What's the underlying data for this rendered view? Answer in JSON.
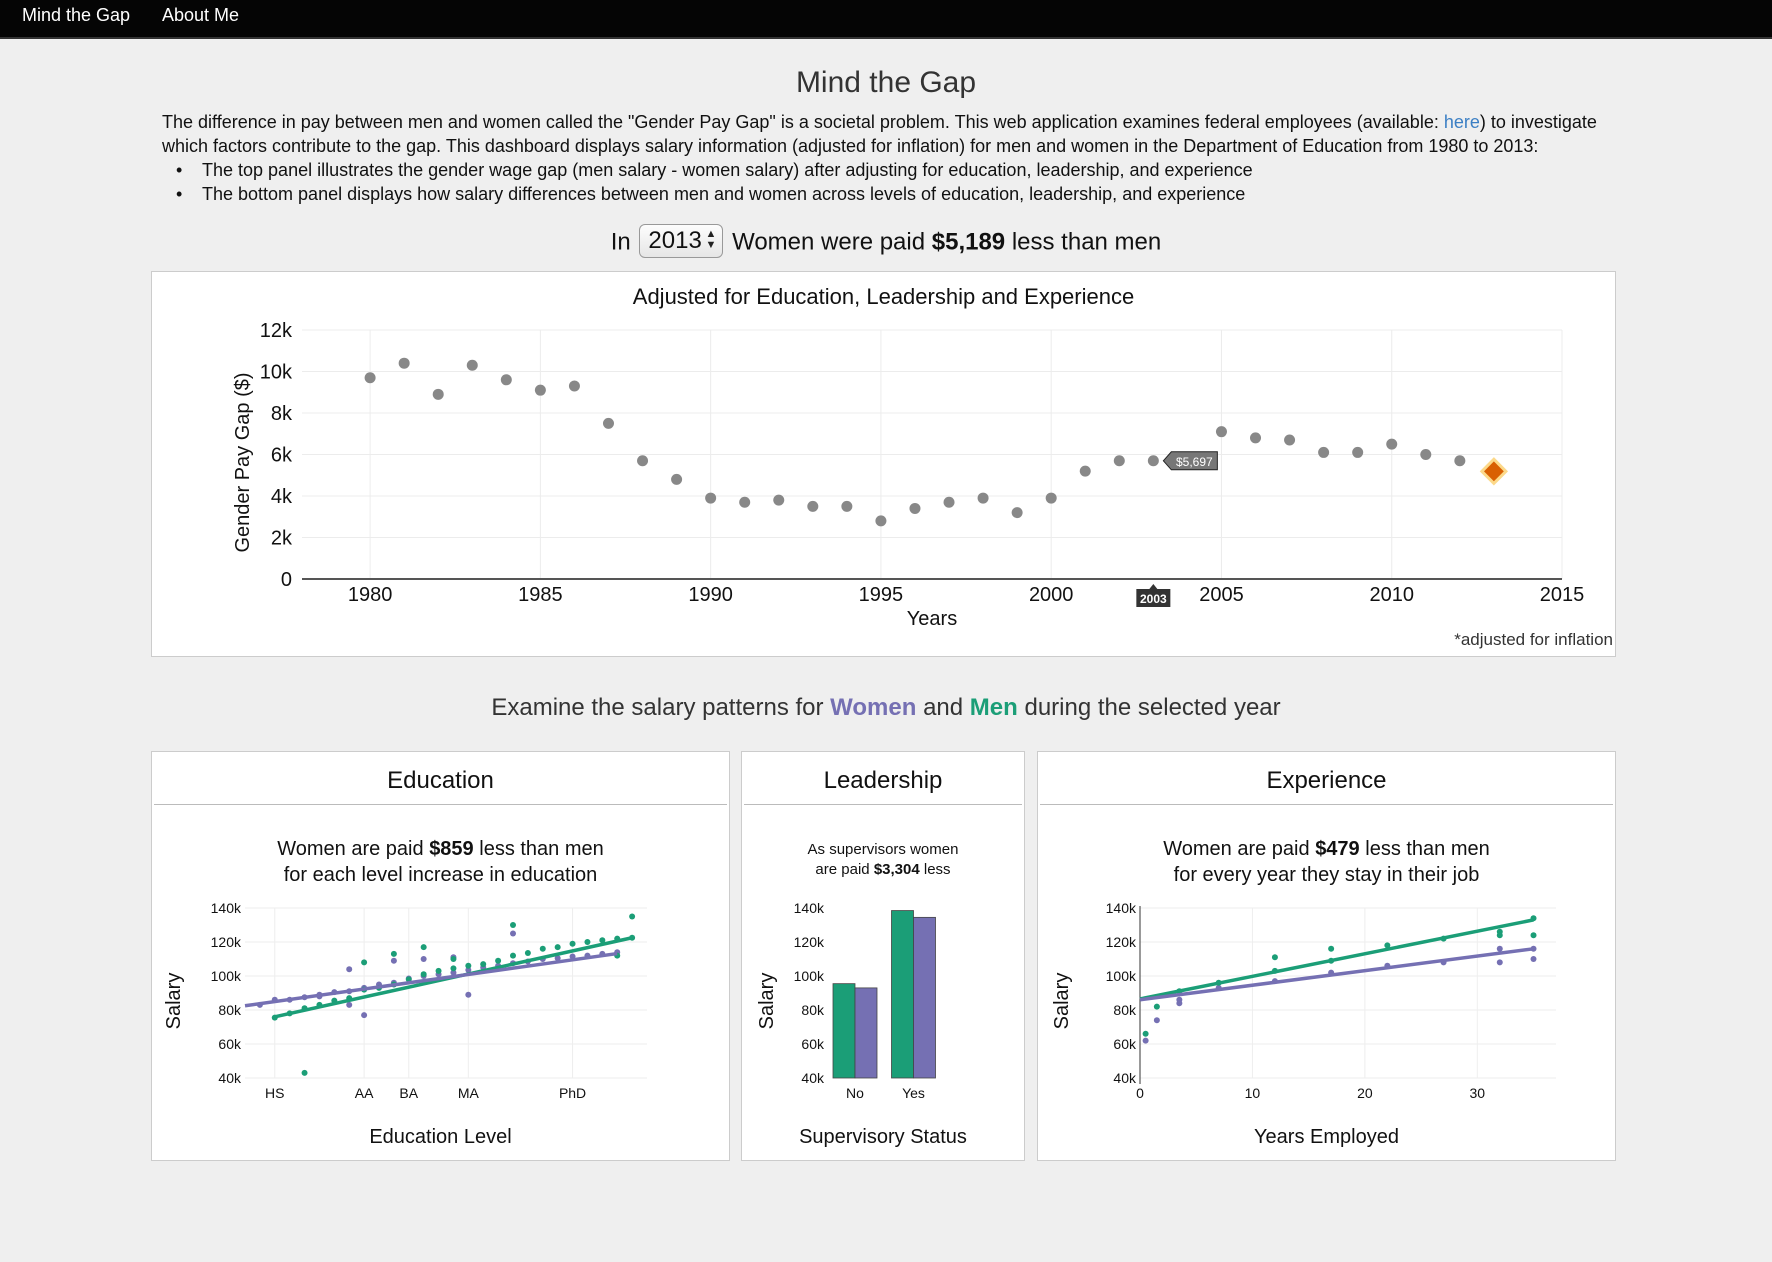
{
  "nav": {
    "brand": "Mind the Gap",
    "about": "About Me"
  },
  "page_title": "Mind the Gap",
  "intro": {
    "part1": "The difference in pay between men and women called the \"Gender Pay Gap\" is a societal problem. This web application examines federal employees (available: ",
    "link": "here",
    "part2": ") to investigate which factors contribute to the gap. This dashboard displays salary information (adjusted for inflation) for men and women in the Department of Education from 1980 to 2013:"
  },
  "bullets": [
    "The top panel illustrates the gender wage gap (men salary - women salary) after adjusting for education, leadership, and experience",
    "The bottom panel displays how salary differences between men and women across levels of education, leadership, and experience"
  ],
  "headline": {
    "prefix": "In",
    "year": "2013",
    "middle": "Women were paid",
    "amount": "$5,189",
    "suffix": "less than men"
  },
  "colors": {
    "women": "#7570b3",
    "men": "#1b9e77",
    "points": "#888888",
    "highlight": "#d95f02",
    "highlight_glow": "#fcd98a"
  },
  "main_chart": {
    "note": "*adjusted for inflation",
    "chart_data": {
      "type": "scatter",
      "title": "Adjusted for Education, Leadership and Experience",
      "xlabel": "Years",
      "ylabel": "Gender Pay Gap ($)",
      "xlim": [
        1978,
        2015
      ],
      "ylim": [
        0,
        12000
      ],
      "x_ticks": [
        1980,
        1985,
        1990,
        1995,
        2000,
        2005,
        2010,
        2015
      ],
      "y_ticks": [
        0,
        2000,
        4000,
        6000,
        8000,
        10000,
        12000
      ],
      "y_tick_labels": [
        "0",
        "2k",
        "4k",
        "6k",
        "8k",
        "10k",
        "12k"
      ],
      "x": [
        1980,
        1981,
        1982,
        1983,
        1984,
        1985,
        1986,
        1987,
        1988,
        1989,
        1990,
        1991,
        1992,
        1993,
        1994,
        1995,
        1996,
        1997,
        1998,
        1999,
        2000,
        2001,
        2002,
        2003,
        2005,
        2006,
        2007,
        2008,
        2009,
        2010,
        2011,
        2012,
        2013
      ],
      "y": [
        9700,
        10400,
        8900,
        10300,
        9600,
        9100,
        9300,
        7500,
        5700,
        4800,
        3900,
        3700,
        3800,
        3500,
        3500,
        2800,
        3400,
        3700,
        3900,
        3200,
        3900,
        5200,
        5700,
        5697,
        7100,
        6800,
        6700,
        6100,
        6100,
        6500,
        6000,
        5700,
        5189
      ],
      "selected_year": 2013,
      "tooltip": {
        "x": 2003,
        "x_label": "2003",
        "value_label": "$5,697"
      }
    }
  },
  "sub_headline": {
    "prefix": "Examine the salary patterns for",
    "women": "Women",
    "and": "and",
    "men": "Men",
    "suffix": "during the selected year"
  },
  "education": {
    "title": "Education",
    "stat_line1_pre": "Women are paid",
    "stat_line1_amt": "$859",
    "stat_line1_post": "less than men",
    "stat_line2": "for each level increase in education",
    "chart_data": {
      "type": "scatter",
      "xlabel": "Education Level",
      "ylabel": "Salary",
      "xlim": [
        9,
        22.5
      ],
      "ylim": [
        40000,
        140000
      ],
      "y_tick_labels": [
        "40k",
        "60k",
        "80k",
        "100k",
        "120k",
        "140k"
      ],
      "y_ticks": [
        40000,
        60000,
        80000,
        100000,
        120000,
        140000
      ],
      "x_ticks": [
        10,
        13,
        14.5,
        16.5,
        20
      ],
      "x_tick_labels": [
        "HS",
        "AA",
        "BA",
        "MA",
        "PhD"
      ],
      "series": [
        {
          "name": "Women",
          "line": [
            [
              9,
              82500
            ],
            [
              21.5,
              113200
            ]
          ],
          "x": [
            9.5,
            10,
            10.5,
            11,
            11.5,
            12,
            12.5,
            12.5,
            13,
            13,
            13.5,
            14,
            14.5,
            15,
            15.5,
            16,
            16.5,
            17,
            17.5,
            18,
            18.5,
            19,
            19.5,
            20,
            20.5,
            21,
            21.5,
            11.5,
            12.5,
            14,
            15,
            16,
            16.5,
            18
          ],
          "y": [
            83000,
            86000,
            86000,
            87500,
            89000,
            90500,
            91000,
            104000,
            93000,
            77000,
            95000,
            96000,
            98500,
            100000,
            101000,
            102000,
            103500,
            105000,
            106000,
            107500,
            108500,
            110000,
            110500,
            111500,
            112000,
            113000,
            114000,
            88000,
            83000,
            109000,
            110000,
            111000,
            89000,
            125000
          ]
        },
        {
          "name": "Men",
          "line": [
            [
              10,
              76000
            ],
            [
              22,
              122500
            ]
          ],
          "x": [
            10,
            10.5,
            11,
            11.5,
            12,
            12.5,
            13,
            13.5,
            14,
            14.5,
            15,
            15.5,
            16,
            16.5,
            17,
            17.5,
            18,
            18.5,
            19,
            19.5,
            20,
            20.5,
            21,
            21.5,
            22,
            11,
            13,
            14,
            15,
            16,
            18,
            21.5,
            22
          ],
          "y": [
            75500,
            78000,
            81000,
            83000,
            85500,
            87000,
            92000,
            93000,
            95000,
            98000,
            101000,
            103000,
            104500,
            106000,
            107000,
            109000,
            112000,
            113500,
            116000,
            117000,
            119000,
            120000,
            121000,
            122000,
            122500,
            43000,
            108000,
            113000,
            117000,
            110000,
            130000,
            112000,
            135000
          ]
        }
      ]
    }
  },
  "leadership": {
    "title": "Leadership",
    "stat_line1": "As supervisors women",
    "stat_line2_pre": "are paid",
    "stat_line2_amt": "$3,304",
    "stat_line2_post": "less",
    "chart_data": {
      "type": "bar",
      "xlabel": "Supervisory Status",
      "ylabel": "Salary",
      "categories": [
        "No",
        "Yes"
      ],
      "ylim": [
        40000,
        140000
      ],
      "y_ticks": [
        40000,
        60000,
        80000,
        100000,
        120000,
        140000
      ],
      "y_tick_labels": [
        "40k",
        "60k",
        "80k",
        "100k",
        "120k",
        "140k"
      ],
      "series": [
        {
          "name": "Men",
          "values": [
            95500,
            138500
          ]
        },
        {
          "name": "Women",
          "values": [
            93000,
            134500
          ]
        }
      ]
    }
  },
  "experience": {
    "title": "Experience",
    "stat_line1_pre": "Women are paid",
    "stat_line1_amt": "$479",
    "stat_line1_post": "less than men",
    "stat_line2": "for every year they stay in their job",
    "chart_data": {
      "type": "scatter",
      "xlabel": "Years Employed",
      "ylabel": "Salary",
      "xlim": [
        0,
        37
      ],
      "ylim": [
        40000,
        140000
      ],
      "x_ticks": [
        0,
        10,
        20,
        30
      ],
      "x_tick_labels": [
        "0",
        "10",
        "20",
        "30"
      ],
      "y_ticks": [
        40000,
        60000,
        80000,
        100000,
        120000,
        140000
      ],
      "y_tick_labels": [
        "40k",
        "60k",
        "80k",
        "100k",
        "120k",
        "140k"
      ],
      "series": [
        {
          "name": "Women",
          "line": [
            [
              0,
              86000
            ],
            [
              35,
              116000
            ]
          ],
          "x": [
            0.5,
            1.5,
            3.5,
            3.5,
            7,
            12,
            17,
            22,
            27,
            32,
            32,
            35,
            35
          ],
          "y": [
            62000,
            74000,
            84000,
            86000,
            93000,
            97000,
            102000,
            106000,
            108000,
            108000,
            116000,
            110000,
            116000
          ]
        },
        {
          "name": "Men",
          "line": [
            [
              0,
              86500
            ],
            [
              35,
              133000
            ]
          ],
          "x": [
            0.5,
            1.5,
            3.5,
            7,
            12,
            12,
            17,
            17,
            22,
            27,
            32,
            32,
            35,
            35
          ],
          "y": [
            66000,
            82000,
            91000,
            96000,
            103000,
            111000,
            109000,
            116000,
            118000,
            122000,
            126000,
            124000,
            134000,
            124000
          ]
        }
      ]
    }
  }
}
